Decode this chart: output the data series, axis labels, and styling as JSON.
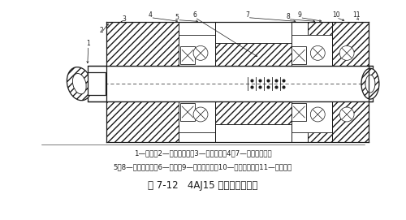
{
  "title_caption": "图 7-12   4AJ15 型轴封器结构图",
  "legend_line1": "1—曲轴；2—内盖固定环；3—回油挡板；4、7—活动摩擦环；",
  "legend_line2": "5、8—转动橡胶圈；6—弹簧；9—外盖固定环；10—固定橡胶圈；11—轴封外盖",
  "bg_color": "#ffffff",
  "fg_color": "#1a1a1a",
  "fig_width": 5.0,
  "fig_height": 2.71,
  "dpi": 100
}
